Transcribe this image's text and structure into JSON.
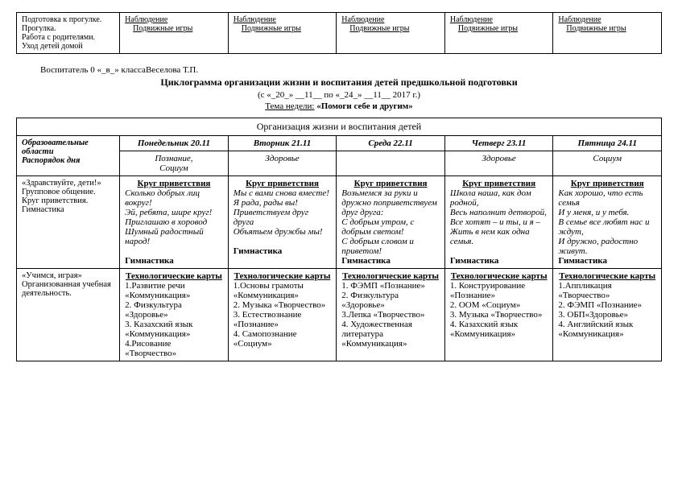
{
  "top_table": {
    "col0": "Подготовка к прогулке.\nПрогулка.\nРабота с родителями.\nУход детей домой",
    "obs_title": "Наблюдение",
    "obs_sub": "Подвижные игры"
  },
  "teacher_line": "Воспитатель 0 «_в_» классаВеселова Т.П.",
  "main_title": "Циклограмма организации жизни и воспитания детей предшкольной подготовки",
  "date_line": "(с «_20_» __11__ по «_24_» __11__ 2017 г.)",
  "theme_label": "Тема недели:",
  "theme_value": "«Помоги себе и другим»",
  "org_header": "Организация жизни и воспитания детей",
  "col_edu_areas": "Образовательные области\nРаспорядок дня",
  "days": {
    "mon": "Понедельник 20.11",
    "tue": "Вторник 21.11",
    "wed": "Среда 22.11",
    "thu": "Четверг 23.11",
    "fri": "Пятница 24.11"
  },
  "focus": {
    "mon": "Познание,\nСоциум",
    "tue": "Здоровье",
    "wed": "",
    "thu": "Здоровье",
    "fri": "Социум"
  },
  "row1": {
    "label": "«Здравствуйте, дети!»\nГрупповое общение.\nКруг приветствия.\nГимнастика",
    "greet_title": "Круг приветствия",
    "mon": "Сколько добрых лиц вокруг!\nЭй, ребята, шире круг!\nПриглашаю в хоровод\nШумный радостный народ!",
    "tue": "Мы с вами снова вместе!\nЯ рада, рады вы!\nПриветствуем друг друга\nОбъятьем дружбы мы!",
    "wed": "Возьмемся за руки и дружно поприветствуем друг друга:\nС добрым утром, с добрым светом!\nС добрым словом и приветом!",
    "thu": "Школа наша, как дом родной,\nВесь наполнит детворой,\nВсе хотят – и ты, и я –\nЖить в нем как одна семья.",
    "fri": "Как хорошо, что есть семья\nИ у меня, и у тебя.\nВ семье все любят нас и ждут,\nИ дружно, радостно живут.",
    "gym": "Гимнастика"
  },
  "row2": {
    "label": "«Учимся, играя»\nОрганизованная учебная деятельность.",
    "tech_title": "Технологические карты",
    "mon": "1.Развитие речи «Коммуникация»\n2. Физкультура «Здоровье»\n3. Казахский язык «Коммуникация»\n4.Рисование «Творчество»",
    "tue": "1.Основы грамоты «Коммуникация»\n2. Музыка «Творчество»\n3. Естествознание «Познание»\n4. Самопознание «Социум»",
    "wed": "1. ФЭМП «Познание»\n2. Физкультура «Здоровье»\n3.Лепка «Творчество»\n4. Художественная литература «Коммуникация»",
    "thu": "1. Конструирование «Познание»\n2. ООМ «Социум»\n3. Музыка «Творчество»\n4. Казахский язык «Коммуникация»",
    "fri": "1.Аппликация «Творчество»\n2. ФЭМП «Познание»\n3. ОБП«Здоровье»\n4. Английский язык «Коммуникация»"
  }
}
